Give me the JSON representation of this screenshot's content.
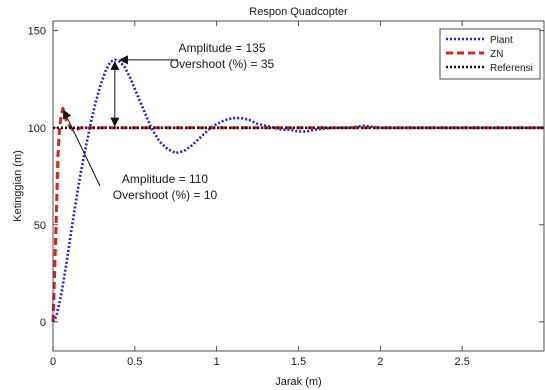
{
  "chart_data": {
    "type": "line",
    "title": "Respon Quadcopter",
    "xlabel": "Jarak (m)",
    "ylabel": "Ketinggian (m)",
    "xlim": [
      0,
      3
    ],
    "ylim": [
      -15,
      155
    ],
    "xticks": [
      0,
      0.5,
      1,
      1.5,
      2,
      2.5
    ],
    "xtick_labels": [
      "0",
      "0.5",
      "1",
      "1.5",
      "2",
      "2.5"
    ],
    "yticks": [
      0,
      50,
      100,
      150
    ],
    "ytick_labels": [
      "0",
      "50",
      "100",
      "150"
    ],
    "grid": false,
    "legend_position": "top-right",
    "series": [
      {
        "name": "Plant",
        "color": "#2323d6",
        "style": "dotted",
        "x": [
          0,
          0.02,
          0.05,
          0.08,
          0.11,
          0.14,
          0.17,
          0.2,
          0.23,
          0.26,
          0.29,
          0.32,
          0.35,
          0.38,
          0.41,
          0.44,
          0.47,
          0.5,
          0.55,
          0.6,
          0.65,
          0.7,
          0.75,
          0.8,
          0.85,
          0.9,
          0.95,
          1.0,
          1.05,
          1.1,
          1.15,
          1.2,
          1.25,
          1.3,
          1.35,
          1.4,
          1.45,
          1.5,
          1.55,
          1.6,
          1.7,
          1.8,
          1.9,
          2.0,
          2.2,
          2.4,
          2.6,
          2.8,
          3.0
        ],
        "y": [
          0,
          3,
          14,
          29,
          46,
          62,
          77,
          90,
          102,
          113,
          122,
          129,
          134,
          135,
          134,
          131,
          126,
          120,
          110,
          100,
          93,
          89,
          87,
          88,
          91,
          95,
          99,
          102,
          104,
          105,
          105,
          104,
          102,
          101,
          100,
          99,
          99,
          98,
          98,
          99,
          100,
          100,
          101,
          100,
          100,
          100,
          100,
          100,
          100
        ]
      },
      {
        "name": "ZN",
        "color": "#e01f1f",
        "style": "dashed",
        "x": [
          0,
          0.01,
          0.02,
          0.03,
          0.04,
          0.05,
          0.06,
          0.07,
          0.08,
          0.1,
          0.12,
          0.14,
          0.17,
          0.2,
          0.25,
          0.3,
          0.4,
          0.5,
          0.7,
          1.0,
          1.5,
          2.0,
          2.5,
          3.0
        ],
        "y": [
          0,
          25,
          55,
          85,
          100,
          106,
          110,
          108,
          104,
          101,
          99,
          99,
          100,
          100,
          100,
          100,
          100,
          100,
          100,
          100,
          100,
          100,
          100,
          100
        ]
      },
      {
        "name": "Referensi",
        "color": "#111111",
        "style": "dotted",
        "x": [
          0,
          3.0
        ],
        "y": [
          100,
          100
        ]
      }
    ],
    "annotations": [
      {
        "lines": [
          "Amplitude = 135",
          "Overshoot (%) = 35"
        ]
      },
      {
        "lines": [
          "Amplitude = 110",
          "Overshoot (%) = 10"
        ]
      }
    ]
  }
}
